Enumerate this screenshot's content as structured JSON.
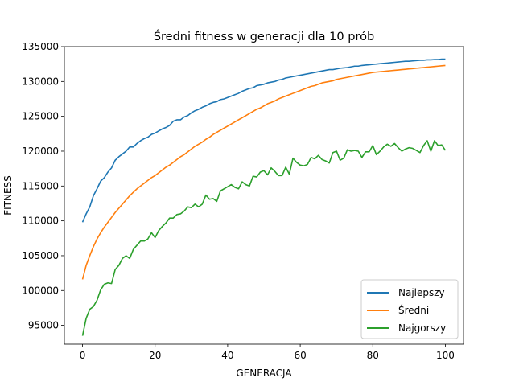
{
  "chart_data": {
    "type": "line",
    "title": "Średni fitness w generacji dla 10 prób",
    "xlabel": "GENERACJA",
    "ylabel": "FITNESS",
    "xlim": [
      -5,
      105
    ],
    "ylim": [
      92300,
      135000
    ],
    "x_ticks": [
      0,
      20,
      40,
      60,
      80,
      100
    ],
    "y_ticks": [
      95000,
      100000,
      105000,
      110000,
      115000,
      120000,
      125000,
      130000,
      135000
    ],
    "grid": false,
    "legend_position": "lower-right",
    "x": [
      0,
      1,
      2,
      3,
      4,
      5,
      6,
      7,
      8,
      9,
      10,
      11,
      12,
      13,
      14,
      15,
      16,
      17,
      18,
      19,
      20,
      21,
      22,
      23,
      24,
      25,
      26,
      27,
      28,
      29,
      30,
      31,
      32,
      33,
      34,
      35,
      36,
      37,
      38,
      39,
      40,
      41,
      42,
      43,
      44,
      45,
      46,
      47,
      48,
      49,
      50,
      51,
      52,
      53,
      54,
      55,
      56,
      57,
      58,
      59,
      60,
      61,
      62,
      63,
      64,
      65,
      66,
      67,
      68,
      69,
      70,
      71,
      72,
      73,
      74,
      75,
      76,
      77,
      78,
      79,
      80,
      81,
      82,
      83,
      84,
      85,
      86,
      87,
      88,
      89,
      90,
      91,
      92,
      93,
      94,
      95,
      96,
      97,
      98,
      99,
      100
    ],
    "series": [
      {
        "name": "Najlepszy",
        "color": "#1f77b4",
        "values": [
          109800,
          111000,
          112000,
          113600,
          114600,
          115700,
          116200,
          117000,
          117600,
          118700,
          119200,
          119600,
          120000,
          120600,
          120600,
          121100,
          121500,
          121800,
          122000,
          122400,
          122600,
          122900,
          123200,
          123400,
          123700,
          124300,
          124500,
          124500,
          124900,
          125100,
          125500,
          125800,
          126000,
          126300,
          126500,
          126800,
          127000,
          127100,
          127400,
          127500,
          127700,
          127900,
          128100,
          128300,
          128600,
          128800,
          129000,
          129100,
          129400,
          129500,
          129600,
          129800,
          129900,
          130000,
          130200,
          130300,
          130500,
          130600,
          130700,
          130800,
          130900,
          131000,
          131100,
          131200,
          131300,
          131400,
          131500,
          131600,
          131700,
          131700,
          131800,
          131900,
          131950,
          132000,
          132100,
          132200,
          132200,
          132300,
          132350,
          132400,
          132450,
          132500,
          132550,
          132600,
          132650,
          132700,
          132750,
          132800,
          132850,
          132900,
          132900,
          132950,
          133000,
          133050,
          133050,
          133100,
          133100,
          133150,
          133150,
          133200,
          133200
        ]
      },
      {
        "name": "Średni",
        "color": "#ff7f0e",
        "values": [
          101600,
          103600,
          105000,
          106300,
          107400,
          108300,
          109100,
          109800,
          110500,
          111200,
          111800,
          112400,
          113000,
          113600,
          114100,
          114600,
          115000,
          115400,
          115800,
          116200,
          116500,
          116900,
          117300,
          117700,
          118000,
          118400,
          118800,
          119200,
          119500,
          119900,
          120300,
          120700,
          121000,
          121300,
          121700,
          122000,
          122400,
          122700,
          123000,
          123300,
          123600,
          123900,
          124200,
          124500,
          124800,
          125100,
          125400,
          125700,
          126000,
          126200,
          126500,
          126800,
          127000,
          127200,
          127500,
          127700,
          127900,
          128100,
          128300,
          128500,
          128700,
          128900,
          129100,
          129300,
          129400,
          129600,
          129800,
          129900,
          130000,
          130100,
          130300,
          130400,
          130500,
          130600,
          130700,
          130800,
          130900,
          131000,
          131100,
          131200,
          131300,
          131350,
          131400,
          131450,
          131500,
          131550,
          131600,
          131650,
          131700,
          131750,
          131800,
          131850,
          131900,
          131950,
          132000,
          132050,
          132100,
          132150,
          132200,
          132250,
          132300
        ]
      },
      {
        "name": "Najgorszy",
        "color": "#2ca02c",
        "values": [
          93500,
          96000,
          97300,
          97700,
          98600,
          100100,
          100900,
          101100,
          101000,
          103000,
          103600,
          104600,
          105000,
          104600,
          105900,
          106500,
          107100,
          107100,
          107400,
          108300,
          107600,
          108600,
          109200,
          109700,
          110400,
          110400,
          110900,
          111000,
          111400,
          112000,
          111900,
          112400,
          112000,
          112400,
          113700,
          113100,
          113200,
          112800,
          114300,
          114600,
          114900,
          115200,
          114800,
          114600,
          115600,
          115200,
          115000,
          116400,
          116300,
          117000,
          117200,
          116600,
          117600,
          117100,
          116500,
          116500,
          117700,
          116700,
          119000,
          118400,
          118000,
          117900,
          118100,
          119100,
          118900,
          119400,
          118800,
          118600,
          118300,
          119800,
          120000,
          118700,
          119000,
          120200,
          120000,
          120100,
          120000,
          119100,
          119900,
          119900,
          120800,
          119500,
          120000,
          120600,
          121000,
          120700,
          121100,
          120500,
          120000,
          120300,
          120500,
          120400,
          120100,
          119800,
          120800,
          121500,
          120000,
          121500,
          120800,
          120900,
          120100
        ]
      }
    ]
  }
}
